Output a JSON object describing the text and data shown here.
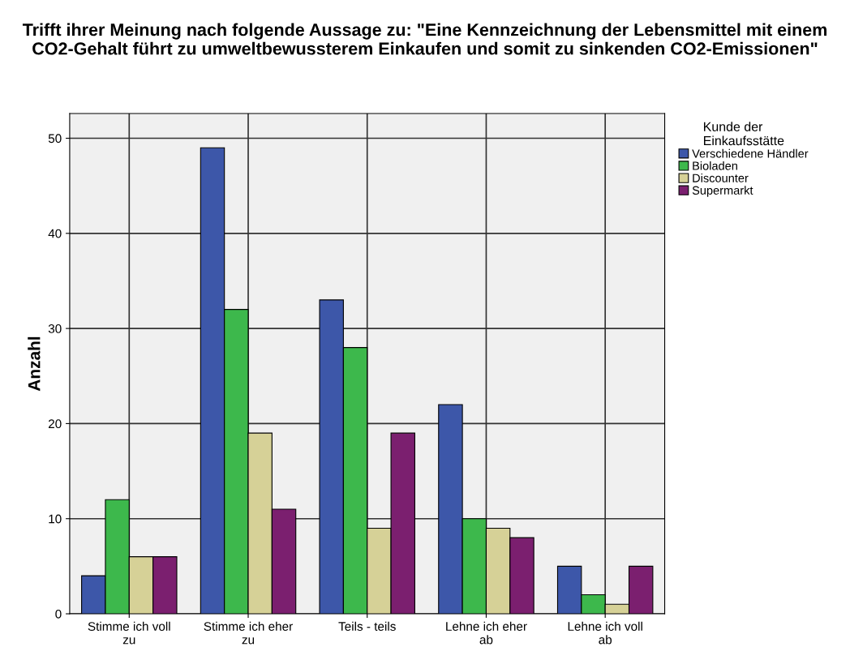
{
  "chart_data": {
    "type": "bar",
    "title": "Trifft ihrer Meinung nach folgende Aussage zu: \"Eine Kennzeichnung der Lebensmittel mit einem CO2-Gehalt führt zu umweltbewussterem Einkaufen und somit zu sinkenden CO2-Emissionen\"",
    "ylabel": "Anzahl",
    "legend_title": "Kunde der Einkaufsstätte",
    "categories": [
      "Stimme ich voll zu",
      "Stimme ich eher zu",
      "Teils - teils",
      "Lehne ich eher ab",
      "Lehne ich voll ab"
    ],
    "series": [
      {
        "name": "Verschiedene Händler",
        "color": "#3d57a9",
        "values": [
          4,
          49,
          33,
          22,
          5
        ]
      },
      {
        "name": "Bioladen",
        "color": "#3db84c",
        "values": [
          12,
          32,
          28,
          10,
          2
        ]
      },
      {
        "name": "Discounter",
        "color": "#d6d197",
        "values": [
          6,
          19,
          9,
          9,
          1
        ]
      },
      {
        "name": "Supermarkt",
        "color": "#7b1f6f",
        "values": [
          6,
          11,
          19,
          8,
          5
        ]
      }
    ],
    "ylim": [
      0,
      52.6
    ],
    "yticks": [
      0,
      10,
      20,
      30,
      40,
      50
    ],
    "grid": true,
    "legend": "top right"
  }
}
